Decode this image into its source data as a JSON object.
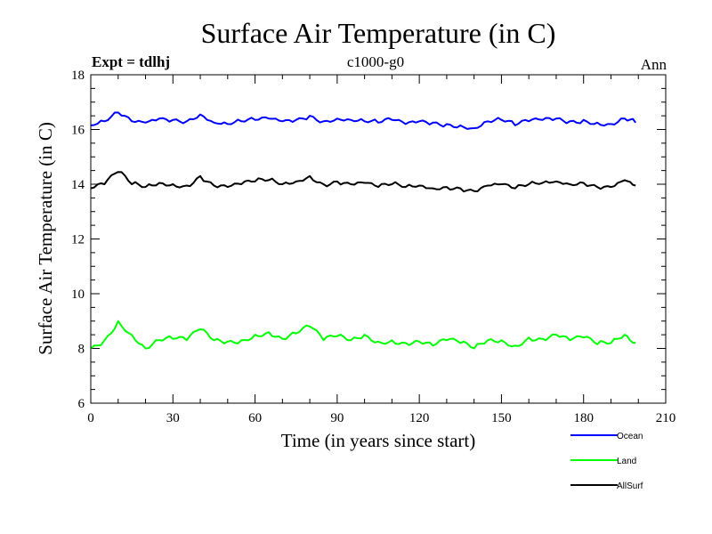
{
  "chart_data": {
    "type": "line",
    "title": "Surface Air Temperature (in C)",
    "header_left": "Expt = tdlhj",
    "header_center": "c1000-g0",
    "header_right": "Ann",
    "xlabel": "Time (in years since start)",
    "ylabel": "Surface Air Temperature (in C)",
    "xlim": [
      0,
      210
    ],
    "ylim": [
      6,
      18
    ],
    "xticks": [
      0,
      30,
      60,
      90,
      120,
      150,
      180,
      210
    ],
    "yticks": [
      6,
      8,
      10,
      12,
      14,
      16,
      18
    ],
    "grid": false,
    "legend_position": "bottom-right",
    "series": [
      {
        "name": "Ocean",
        "color": "#0000ff",
        "x": [
          0,
          5,
          10,
          15,
          20,
          25,
          30,
          35,
          40,
          45,
          50,
          55,
          60,
          65,
          70,
          75,
          80,
          85,
          90,
          95,
          100,
          105,
          110,
          115,
          120,
          125,
          130,
          135,
          140,
          145,
          150,
          155,
          160,
          165,
          170,
          175,
          180,
          185,
          190,
          195,
          199
        ],
        "values": [
          16.15,
          16.3,
          16.62,
          16.3,
          16.25,
          16.4,
          16.35,
          16.3,
          16.55,
          16.25,
          16.2,
          16.3,
          16.35,
          16.4,
          16.3,
          16.35,
          16.5,
          16.3,
          16.4,
          16.35,
          16.3,
          16.25,
          16.35,
          16.2,
          16.3,
          16.25,
          16.2,
          16.15,
          16.05,
          16.3,
          16.35,
          16.15,
          16.3,
          16.35,
          16.4,
          16.3,
          16.35,
          16.25,
          16.2,
          16.4,
          16.25
        ]
      },
      {
        "name": "Land",
        "color": "#00ff00",
        "x": [
          0,
          5,
          10,
          15,
          20,
          25,
          30,
          35,
          40,
          45,
          50,
          55,
          60,
          65,
          70,
          75,
          80,
          85,
          90,
          95,
          100,
          105,
          110,
          115,
          120,
          125,
          130,
          135,
          140,
          145,
          150,
          155,
          160,
          165,
          170,
          175,
          180,
          185,
          190,
          195,
          199
        ],
        "values": [
          8.0,
          8.3,
          9.0,
          8.5,
          8.0,
          8.3,
          8.35,
          8.3,
          8.7,
          8.3,
          8.25,
          8.3,
          8.5,
          8.6,
          8.35,
          8.55,
          8.8,
          8.3,
          8.45,
          8.3,
          8.5,
          8.25,
          8.3,
          8.2,
          8.25,
          8.1,
          8.3,
          8.2,
          8.0,
          8.3,
          8.3,
          8.1,
          8.4,
          8.35,
          8.5,
          8.3,
          8.4,
          8.15,
          8.2,
          8.5,
          8.2
        ]
      },
      {
        "name": "AllSurf",
        "color": "#000000",
        "x": [
          0,
          5,
          10,
          15,
          20,
          25,
          30,
          35,
          40,
          45,
          50,
          55,
          60,
          65,
          70,
          75,
          80,
          85,
          90,
          95,
          100,
          105,
          110,
          115,
          120,
          125,
          130,
          135,
          140,
          145,
          150,
          155,
          160,
          165,
          170,
          175,
          180,
          185,
          190,
          195,
          199
        ],
        "values": [
          13.85,
          14.0,
          14.45,
          14.0,
          13.9,
          14.05,
          14.0,
          13.95,
          14.3,
          13.95,
          13.9,
          14.0,
          14.1,
          14.15,
          14.0,
          14.1,
          14.3,
          14.0,
          14.1,
          14.0,
          14.05,
          13.9,
          14.0,
          13.9,
          13.95,
          13.85,
          13.9,
          13.85,
          13.75,
          13.95,
          14.0,
          13.85,
          14.0,
          14.05,
          14.1,
          14.0,
          14.05,
          13.9,
          13.9,
          14.15,
          13.95
        ]
      }
    ]
  }
}
